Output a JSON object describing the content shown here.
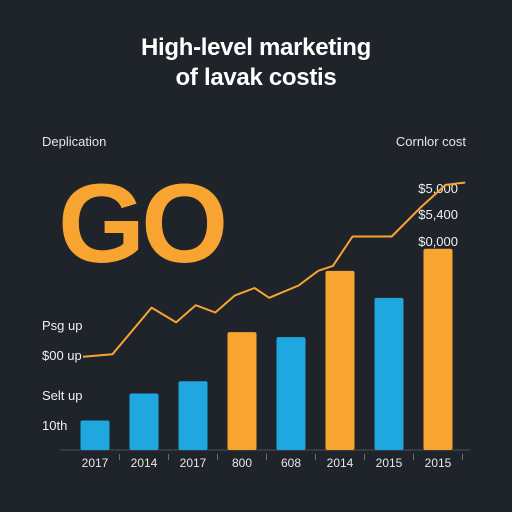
{
  "chart_data": {
    "type": "bar",
    "title_line_1": "High-level marketing",
    "title_line_2": "of lavak costis",
    "left_header": "Deplication",
    "right_header": "Cornlor cost",
    "big_mark": "GO",
    "categories": [
      "2017",
      "2014",
      "2017",
      "800",
      "608",
      "2014",
      "2015",
      "2015"
    ],
    "values": [
      12,
      23,
      28,
      48,
      46,
      73,
      62,
      82
    ],
    "bar_colors": [
      "#1ea8df",
      "#1ea8df",
      "#1ea8df",
      "#f7a431",
      "#1ea8df",
      "#f7a431",
      "#1ea8df",
      "#f7a431"
    ],
    "line": {
      "color": "#f7a431",
      "points": [
        [
          0,
          38
        ],
        [
          0.6,
          39
        ],
        [
          1.4,
          58
        ],
        [
          1.9,
          52
        ],
        [
          2.3,
          59
        ],
        [
          2.7,
          56
        ],
        [
          3.1,
          63
        ],
        [
          3.5,
          66
        ],
        [
          3.8,
          62
        ],
        [
          4.4,
          67
        ],
        [
          4.8,
          73
        ],
        [
          5.1,
          75
        ],
        [
          5.5,
          87
        ],
        [
          6.3,
          87
        ],
        [
          6.9,
          99
        ],
        [
          7.4,
          108
        ],
        [
          7.8,
          109
        ]
      ]
    },
    "y_left_labels": [
      "Psg up",
      "$00 up",
      "Selt up",
      "10th"
    ],
    "y_right_labels": [
      "$5,000",
      "$5,400",
      "$0,000"
    ],
    "ylim": [
      0,
      110
    ]
  },
  "colors": {
    "background": "#1f232a",
    "accent_orange": "#f7a431",
    "accent_blue": "#1ea8df"
  }
}
